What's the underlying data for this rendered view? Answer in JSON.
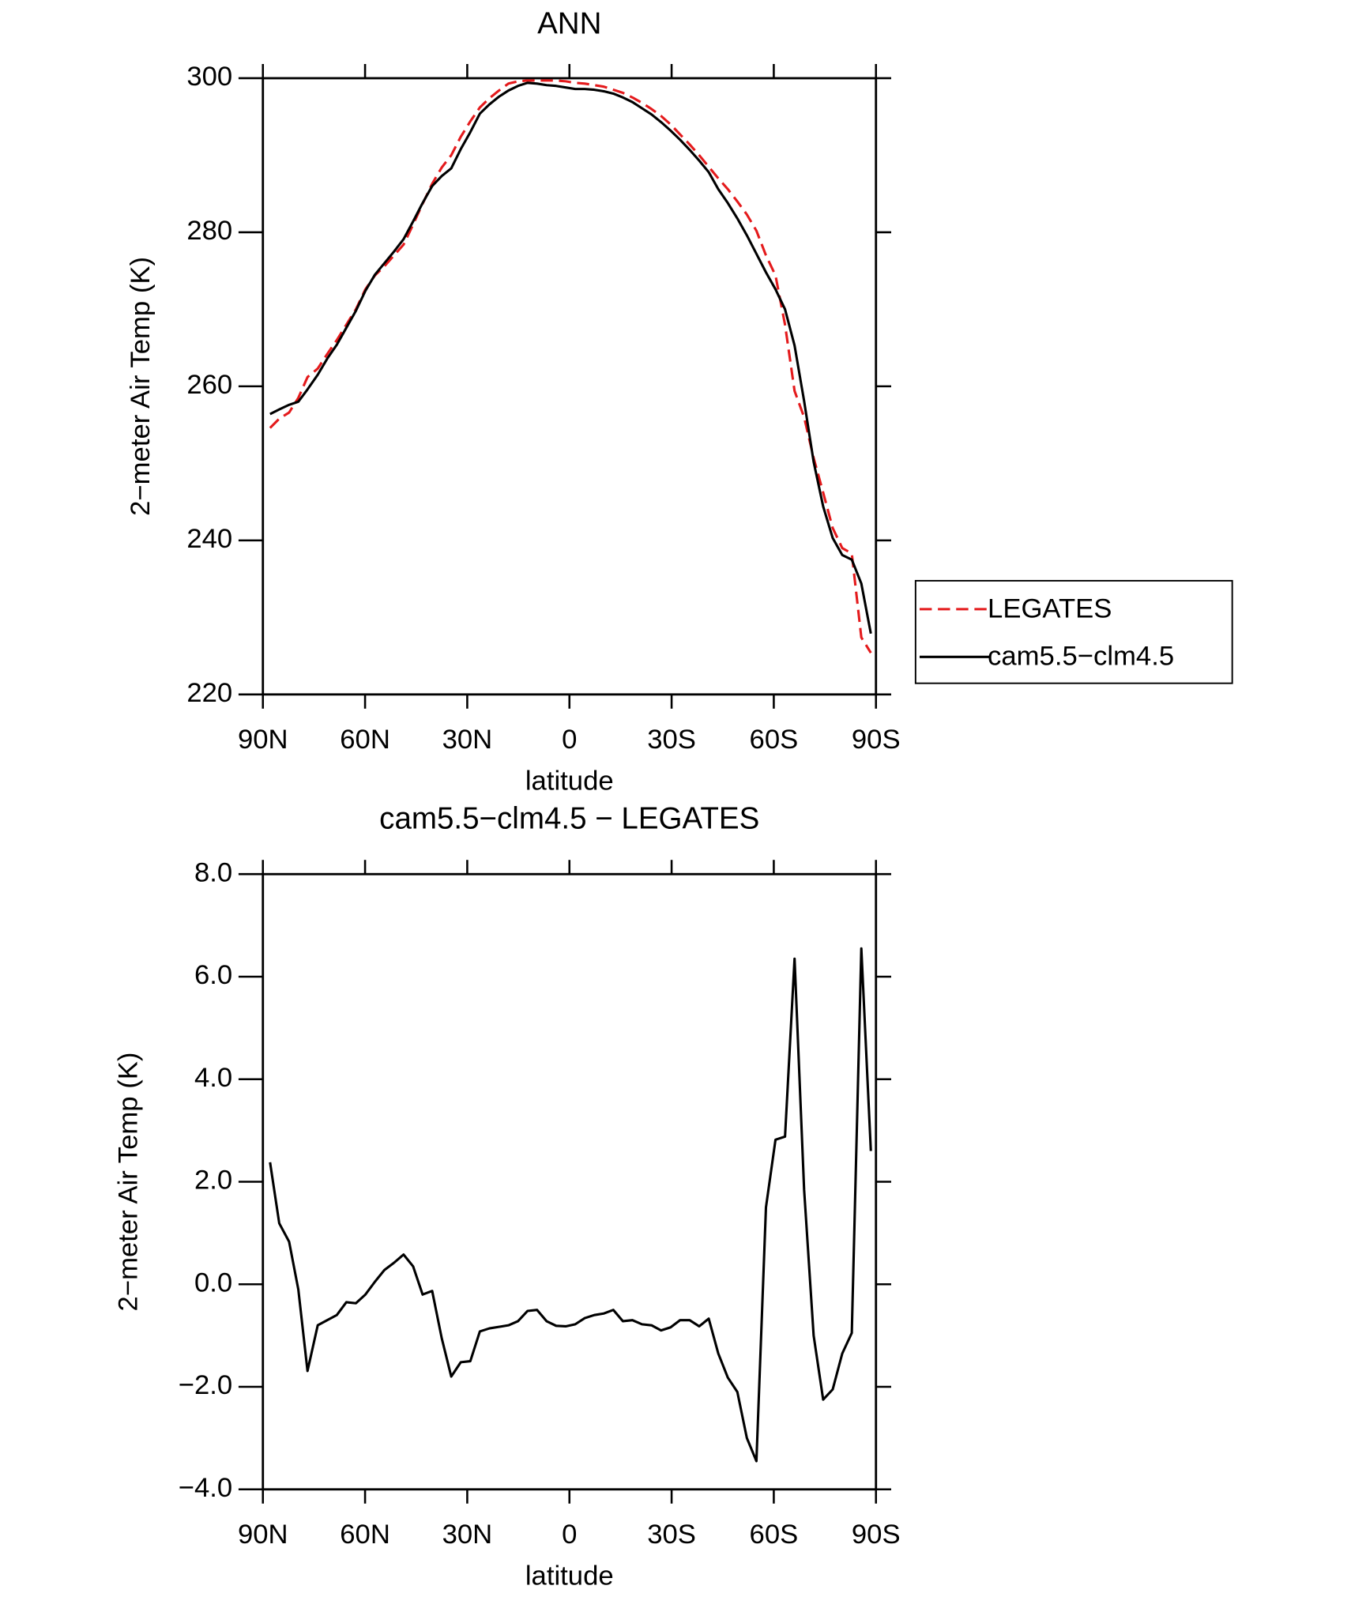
{
  "chart_data": [
    {
      "type": "line",
      "title": "ANN",
      "xlabel": "latitude",
      "ylabel": "2−meter Air Temp (K)",
      "x": [
        87.9,
        85.2,
        82.3,
        79.6,
        76.9,
        73.9,
        71.1,
        68.3,
        65.5,
        62.7,
        59.9,
        57.1,
        54.3,
        51.5,
        48.7,
        45.9,
        43.1,
        40.3,
        37.5,
        34.7,
        31.9,
        29.1,
        26.3,
        23.5,
        20.7,
        17.9,
        15.1,
        12.3,
        9.5,
        6.7,
        3.9,
        1.1,
        -1.7,
        -4.5,
        -7.3,
        -10.1,
        -12.9,
        -15.7,
        -18.5,
        -21.3,
        -24.1,
        -26.9,
        -29.7,
        -32.5,
        -35.3,
        -38.1,
        -40.9,
        -43.7,
        -46.5,
        -49.3,
        -52.1,
        -54.9,
        -57.7,
        -60.5,
        -63.3,
        -66.1,
        -68.9,
        -71.7,
        -74.5,
        -77.3,
        -80.1,
        -82.9,
        -85.7,
        -88.5
      ],
      "series": [
        {
          "name": "LEGATES",
          "color": "#e41a1c",
          "dashed": true,
          "values": [
            254.6,
            255.8,
            256.6,
            258.5,
            261.2,
            262.3,
            264.2,
            266.0,
            268.0,
            270.0,
            272.6,
            274.4,
            275.6,
            277.0,
            278.4,
            281.0,
            283.7,
            286.3,
            288.4,
            290.0,
            292.4,
            294.4,
            296.2,
            297.4,
            298.4,
            299.3,
            299.6,
            299.7,
            299.7,
            299.7,
            299.7,
            299.6,
            299.4,
            299.3,
            299.1,
            298.9,
            298.5,
            298.1,
            297.5,
            296.8,
            296.0,
            295.1,
            294.0,
            292.7,
            291.4,
            290.0,
            288.5,
            287.0,
            285.6,
            284.0,
            282.3,
            280.2,
            277.0,
            274.4,
            268.0,
            259.4,
            256.0,
            250.7,
            246.2,
            241.6,
            239.0,
            238.3,
            227.4,
            225.4
          ]
        },
        {
          "name": "cam5.5−clm4.5",
          "color": "#000000",
          "dashed": false,
          "values": [
            256.4,
            257.0,
            257.6,
            258.0,
            259.6,
            261.5,
            263.6,
            265.4,
            267.6,
            269.8,
            272.4,
            274.5,
            276.0,
            277.5,
            279.1,
            281.4,
            283.8,
            286.0,
            287.3,
            288.3,
            290.8,
            293.0,
            295.4,
            296.6,
            297.6,
            298.4,
            299.0,
            299.4,
            299.3,
            299.1,
            299.0,
            298.8,
            298.6,
            298.6,
            298.5,
            298.3,
            298.0,
            297.5,
            296.9,
            296.1,
            295.3,
            294.3,
            293.2,
            292.0,
            290.7,
            289.3,
            287.8,
            285.6,
            283.8,
            281.8,
            279.6,
            277.2,
            274.8,
            272.6,
            270.0,
            265.3,
            258.1,
            250.2,
            244.4,
            240.3,
            238.1,
            237.5,
            234.4,
            227.9
          ]
        }
      ],
      "xlim": [
        90,
        -90
      ],
      "xticks": [
        {
          "value": 90,
          "label": "90N"
        },
        {
          "value": 60,
          "label": "60N"
        },
        {
          "value": 30,
          "label": "30N"
        },
        0,
        {
          "value": -30,
          "label": "30S"
        },
        {
          "value": -60,
          "label": "60S"
        },
        {
          "value": -90,
          "label": "90S"
        }
      ],
      "ylim": [
        220,
        300
      ],
      "yticks": [
        220,
        240,
        260,
        280,
        300
      ],
      "legend": "outside-right"
    },
    {
      "type": "line",
      "title": "cam5.5−clm4.5 − LEGATES",
      "xlabel": "latitude",
      "ylabel": "2−meter Air Temp (K)",
      "x": [
        87.9,
        85.2,
        82.3,
        79.6,
        76.9,
        73.9,
        71.1,
        68.3,
        65.5,
        62.7,
        59.9,
        57.1,
        54.3,
        51.5,
        48.7,
        45.9,
        43.1,
        40.3,
        37.5,
        34.7,
        31.9,
        29.1,
        26.3,
        23.5,
        20.7,
        17.9,
        15.1,
        12.3,
        9.5,
        6.7,
        3.9,
        1.1,
        -1.7,
        -4.5,
        -7.3,
        -10.1,
        -12.9,
        -15.7,
        -18.5,
        -21.3,
        -24.1,
        -26.9,
        -29.7,
        -32.5,
        -35.3,
        -38.1,
        -40.9,
        -43.7,
        -46.5,
        -49.3,
        -52.1,
        -54.9,
        -57.7,
        -60.5,
        -63.3,
        -66.1,
        -68.9,
        -71.7,
        -74.5,
        -77.3,
        -80.1,
        -82.9,
        -85.7,
        -88.5
      ],
      "values": [
        2.38,
        1.19,
        0.83,
        -0.1,
        -1.69,
        -0.8,
        -0.7,
        -0.6,
        -0.35,
        -0.37,
        -0.2,
        0.05,
        0.28,
        0.42,
        0.58,
        0.35,
        -0.2,
        -0.13,
        -1.05,
        -1.8,
        -1.52,
        -1.5,
        -0.92,
        -0.86,
        -0.83,
        -0.8,
        -0.72,
        -0.52,
        -0.5,
        -0.72,
        -0.81,
        -0.82,
        -0.78,
        -0.66,
        -0.6,
        -0.57,
        -0.5,
        -0.72,
        -0.7,
        -0.78,
        -0.8,
        -0.9,
        -0.84,
        -0.7,
        -0.7,
        -0.82,
        -0.67,
        -1.35,
        -1.82,
        -2.1,
        -3.0,
        -3.45,
        1.5,
        2.82,
        2.88,
        6.35,
        1.85,
        -1.0,
        -2.25,
        -2.05,
        -1.35,
        -0.95,
        6.55,
        2.6
      ],
      "color": "#000000",
      "xlim": [
        90,
        -90
      ],
      "xticks": [
        {
          "value": 90,
          "label": "90N"
        },
        {
          "value": 60,
          "label": "60N"
        },
        {
          "value": 30,
          "label": "30N"
        },
        0,
        {
          "value": -30,
          "label": "30S"
        },
        {
          "value": -60,
          "label": "60S"
        },
        {
          "value": -90,
          "label": "90S"
        }
      ],
      "ylim": [
        -4,
        8
      ],
      "yticks": [
        {
          "value": -4,
          "label": "−4.0"
        },
        {
          "value": -2,
          "label": "−2.0"
        },
        {
          "value": 0,
          "label": "0.0"
        },
        {
          "value": 2,
          "label": "2.0"
        },
        {
          "value": 4,
          "label": "4.0"
        },
        {
          "value": 6,
          "label": "6.0"
        },
        {
          "value": 8,
          "label": "8.0"
        }
      ]
    }
  ]
}
